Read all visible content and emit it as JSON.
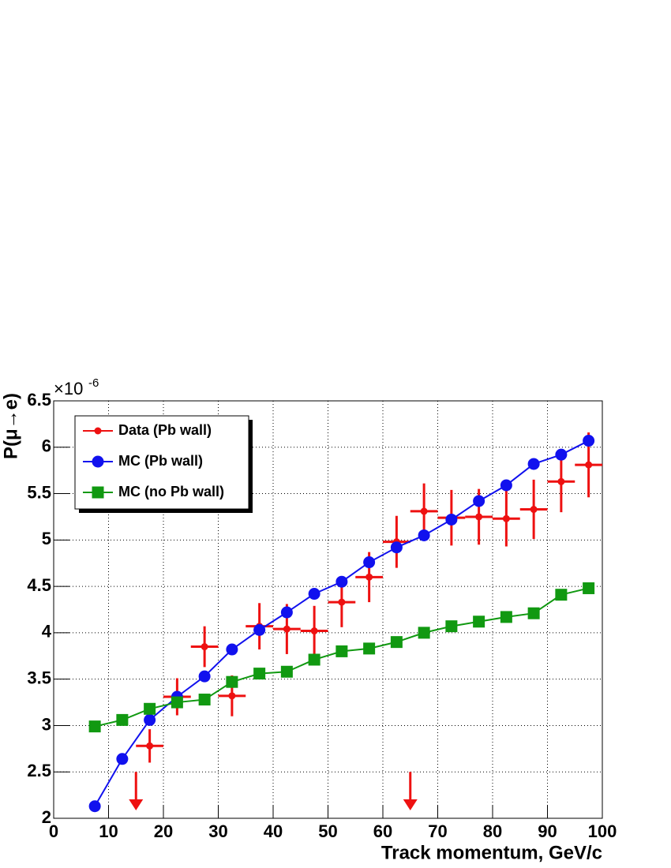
{
  "chart_data": {
    "type": "line",
    "x_label": "Track momentum, GeV/c",
    "y_label": "P(μ→e)",
    "y_scale_label": "×10",
    "y_scale_exponent": "-6",
    "xlim": [
      0,
      100
    ],
    "xticks": [
      0,
      10,
      20,
      30,
      40,
      50,
      60,
      70,
      80,
      90,
      100
    ],
    "ylim": [
      2,
      6.5
    ],
    "yticks": [
      2,
      2.5,
      3,
      3.5,
      4,
      4.5,
      5,
      5.5,
      6,
      6.5
    ],
    "grid": true,
    "legend": "top-left",
    "series": [
      {
        "name": "Data (Pb wall)",
        "color": "#ee1111",
        "marker": "errorbar",
        "x": [
          17.5,
          22.5,
          27.5,
          32.5,
          37.5,
          42.5,
          47.5,
          52.5,
          57.5,
          62.5,
          67.5,
          72.5,
          77.5,
          82.5,
          87.5,
          92.5,
          97.5
        ],
        "values": [
          2.78,
          3.31,
          3.85,
          3.32,
          4.07,
          4.04,
          4.02,
          4.33,
          4.6,
          4.98,
          5.31,
          5.24,
          5.25,
          5.23,
          5.33,
          5.63,
          5.81
        ],
        "yerr": [
          0.18,
          0.2,
          0.22,
          0.22,
          0.25,
          0.27,
          0.27,
          0.27,
          0.27,
          0.28,
          0.3,
          0.3,
          0.3,
          0.3,
          0.32,
          0.33,
          0.35
        ],
        "xerr": 2.5
      },
      {
        "name": "MC (Pb wall)",
        "color": "#1111ee",
        "marker": "circle",
        "x": [
          7.5,
          12.5,
          17.5,
          22.5,
          27.5,
          32.5,
          37.5,
          42.5,
          47.5,
          52.5,
          57.5,
          62.5,
          67.5,
          72.5,
          77.5,
          82.5,
          87.5,
          92.5,
          97.5
        ],
        "values": [
          2.13,
          2.64,
          3.06,
          3.31,
          3.53,
          3.82,
          4.03,
          4.22,
          4.42,
          4.55,
          4.76,
          4.92,
          5.05,
          5.22,
          5.42,
          5.59,
          5.82,
          5.92,
          6.07
        ]
      },
      {
        "name": "MC (no Pb wall)",
        "color": "#119911",
        "marker": "square",
        "x": [
          7.5,
          12.5,
          17.5,
          22.5,
          27.5,
          32.5,
          37.5,
          42.5,
          47.5,
          52.5,
          57.5,
          62.5,
          67.5,
          72.5,
          77.5,
          82.5,
          87.5,
          92.5,
          97.5
        ],
        "values": [
          2.99,
          3.06,
          3.18,
          3.25,
          3.28,
          3.47,
          3.56,
          3.58,
          3.71,
          3.8,
          3.83,
          3.9,
          4.0,
          4.07,
          4.12,
          4.17,
          4.21,
          4.41,
          4.48
        ]
      }
    ],
    "arrows": [
      {
        "x": 15,
        "y": 2.5,
        "color": "#ee1111"
      },
      {
        "x": 65,
        "y": 2.5,
        "color": "#ee1111"
      }
    ]
  }
}
